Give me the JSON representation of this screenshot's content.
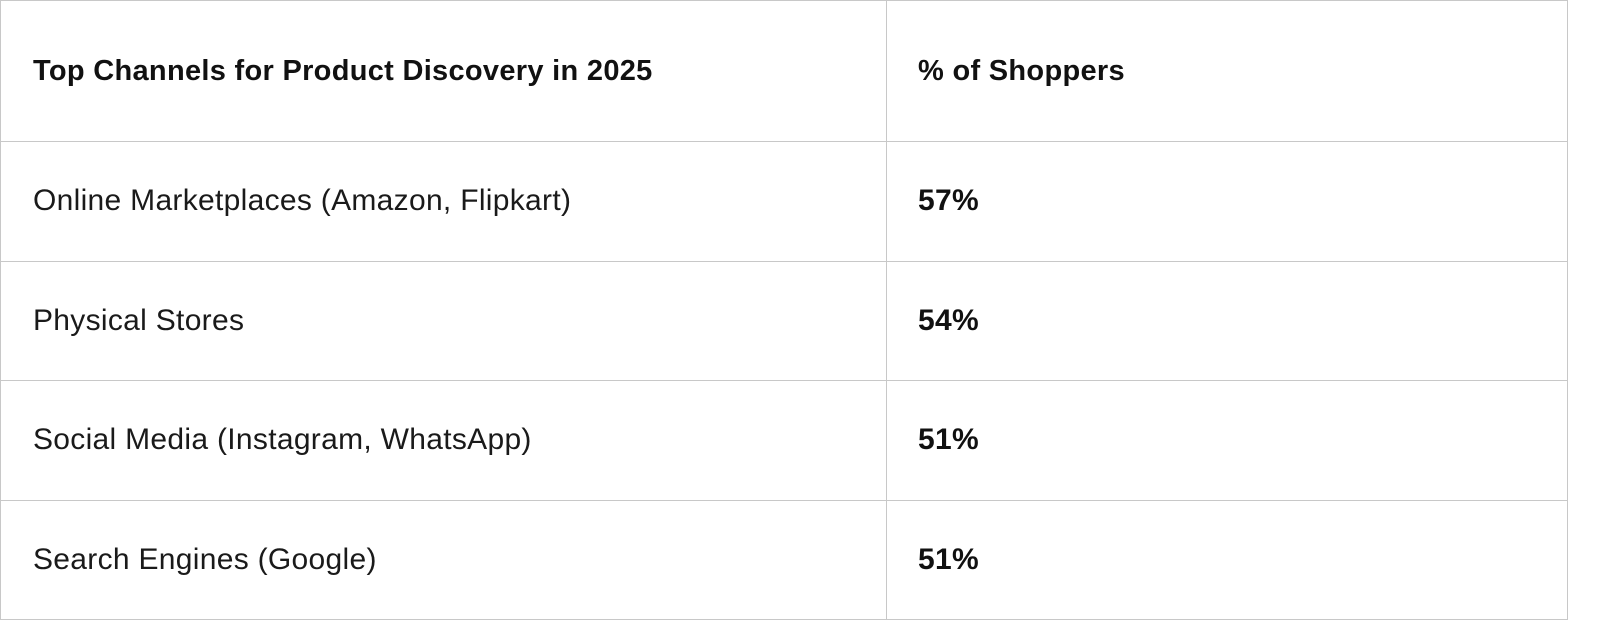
{
  "table": {
    "headers": [
      "Top Channels for Product Discovery in 2025",
      "% of Shoppers"
    ],
    "rows": [
      {
        "channel": "Online Marketplaces (Amazon, Flipkart)",
        "percent": "57%"
      },
      {
        "channel": "Physical Stores",
        "percent": "54%"
      },
      {
        "channel": "Social Media (Instagram, WhatsApp)",
        "percent": "51%"
      },
      {
        "channel": "Search Engines (Google)",
        "percent": "51%"
      }
    ]
  }
}
